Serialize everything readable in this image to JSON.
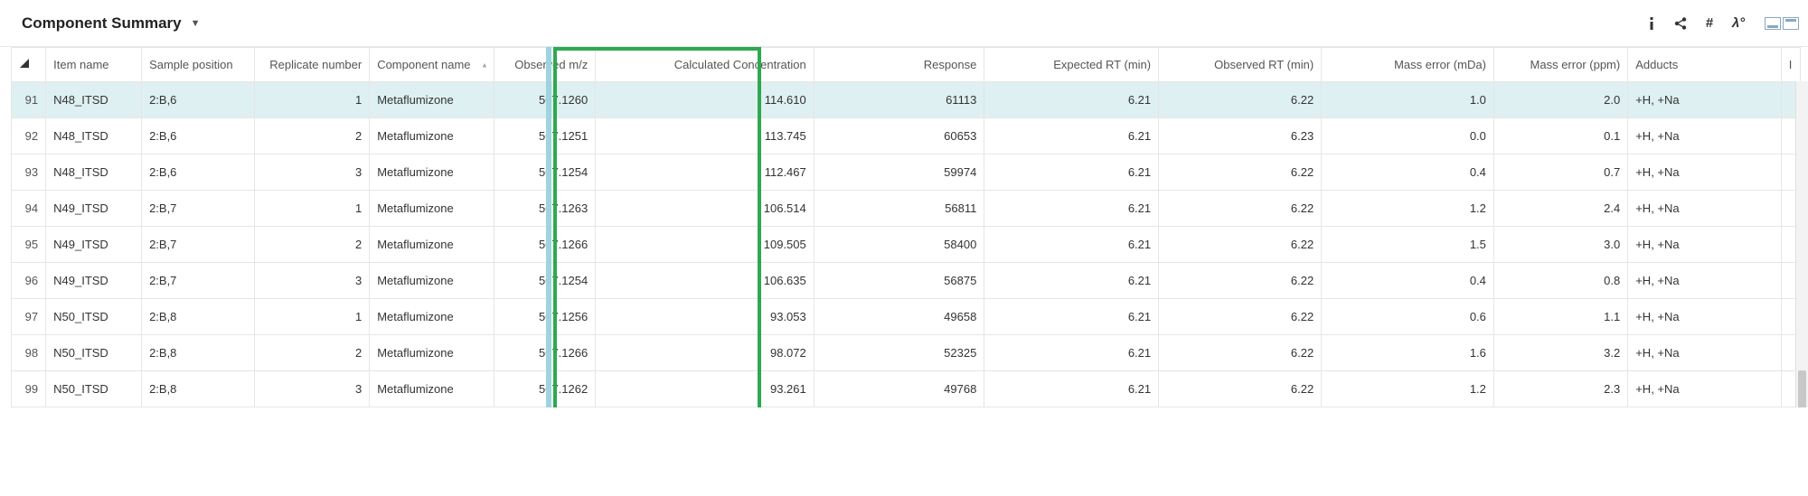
{
  "panel": {
    "title": "Component Summary"
  },
  "toolbar": {
    "info_icon": "info",
    "share_icon": "share",
    "hash_icon": "#",
    "lambda_icon": "λ°",
    "min_icon": "min",
    "max_icon": "max"
  },
  "table": {
    "columns": [
      {
        "key": "rownum",
        "label": "",
        "width": "rownum-col-th",
        "align": "left"
      },
      {
        "key": "item_name",
        "label": "Item name",
        "width": "c-itemname",
        "align": "left"
      },
      {
        "key": "sample_position",
        "label": "Sample position",
        "width": "c-samplepos",
        "align": "left"
      },
      {
        "key": "replicate_number",
        "label": "Replicate number",
        "width": "c-repnum",
        "align": "right"
      },
      {
        "key": "component_name",
        "label": "Component name",
        "width": "c-compname",
        "align": "left",
        "sort": "asc"
      },
      {
        "key": "observed_mz",
        "label": "Observed m/z",
        "width": "c-obsmz",
        "align": "right"
      },
      {
        "key": "calc_conc",
        "label": "Calculated Concentration",
        "width": "c-calcconc",
        "align": "right",
        "highlight": true
      },
      {
        "key": "response",
        "label": "Response",
        "width": "c-response",
        "align": "right"
      },
      {
        "key": "expected_rt",
        "label": "Expected RT (min)",
        "width": "c-exprt",
        "align": "right"
      },
      {
        "key": "observed_rt",
        "label": "Observed RT (min)",
        "width": "c-obsrt",
        "align": "right"
      },
      {
        "key": "mass_error_mda",
        "label": "Mass error (mDa)",
        "width": "c-mda",
        "align": "right"
      },
      {
        "key": "mass_error_ppm",
        "label": "Mass error (ppm)",
        "width": "c-ppm",
        "align": "right"
      },
      {
        "key": "adducts",
        "label": "Adducts",
        "width": "c-adducts",
        "align": "left"
      },
      {
        "key": "extra",
        "label": "I",
        "width": "c-extra",
        "align": "left"
      }
    ],
    "rows": [
      {
        "rownum": 91,
        "item_name": "N48_ITSD",
        "sample_position": "2:B,6",
        "replicate_number": 1,
        "component_name": "Metaflumizone",
        "observed_mz": "507.1260",
        "calc_conc": "114.610",
        "response": "61113",
        "expected_rt": "6.21",
        "observed_rt": "6.22",
        "mass_error_mda": "1.0",
        "mass_error_ppm": "2.0",
        "adducts": "+H, +Na",
        "selected": true
      },
      {
        "rownum": 92,
        "item_name": "N48_ITSD",
        "sample_position": "2:B,6",
        "replicate_number": 2,
        "component_name": "Metaflumizone",
        "observed_mz": "507.1251",
        "calc_conc": "113.745",
        "response": "60653",
        "expected_rt": "6.21",
        "observed_rt": "6.23",
        "mass_error_mda": "0.0",
        "mass_error_ppm": "0.1",
        "adducts": "+H, +Na"
      },
      {
        "rownum": 93,
        "item_name": "N48_ITSD",
        "sample_position": "2:B,6",
        "replicate_number": 3,
        "component_name": "Metaflumizone",
        "observed_mz": "507.1254",
        "calc_conc": "112.467",
        "response": "59974",
        "expected_rt": "6.21",
        "observed_rt": "6.22",
        "mass_error_mda": "0.4",
        "mass_error_ppm": "0.7",
        "adducts": "+H, +Na"
      },
      {
        "rownum": 94,
        "item_name": "N49_ITSD",
        "sample_position": "2:B,7",
        "replicate_number": 1,
        "component_name": "Metaflumizone",
        "observed_mz": "507.1263",
        "calc_conc": "106.514",
        "response": "56811",
        "expected_rt": "6.21",
        "observed_rt": "6.22",
        "mass_error_mda": "1.2",
        "mass_error_ppm": "2.4",
        "adducts": "+H, +Na"
      },
      {
        "rownum": 95,
        "item_name": "N49_ITSD",
        "sample_position": "2:B,7",
        "replicate_number": 2,
        "component_name": "Metaflumizone",
        "observed_mz": "507.1266",
        "calc_conc": "109.505",
        "response": "58400",
        "expected_rt": "6.21",
        "observed_rt": "6.22",
        "mass_error_mda": "1.5",
        "mass_error_ppm": "3.0",
        "adducts": "+H, +Na"
      },
      {
        "rownum": 96,
        "item_name": "N49_ITSD",
        "sample_position": "2:B,7",
        "replicate_number": 3,
        "component_name": "Metaflumizone",
        "observed_mz": "507.1254",
        "calc_conc": "106.635",
        "response": "56875",
        "expected_rt": "6.21",
        "observed_rt": "6.22",
        "mass_error_mda": "0.4",
        "mass_error_ppm": "0.8",
        "adducts": "+H, +Na"
      },
      {
        "rownum": 97,
        "item_name": "N50_ITSD",
        "sample_position": "2:B,8",
        "replicate_number": 1,
        "component_name": "Metaflumizone",
        "observed_mz": "507.1256",
        "calc_conc": "93.053",
        "response": "49658",
        "expected_rt": "6.21",
        "observed_rt": "6.22",
        "mass_error_mda": "0.6",
        "mass_error_ppm": "1.1",
        "adducts": "+H, +Na"
      },
      {
        "rownum": 98,
        "item_name": "N50_ITSD",
        "sample_position": "2:B,8",
        "replicate_number": 2,
        "component_name": "Metaflumizone",
        "observed_mz": "507.1266",
        "calc_conc": "98.072",
        "response": "52325",
        "expected_rt": "6.21",
        "observed_rt": "6.22",
        "mass_error_mda": "1.6",
        "mass_error_ppm": "3.2",
        "adducts": "+H, +Na"
      },
      {
        "rownum": 99,
        "item_name": "N50_ITSD",
        "sample_position": "2:B,8",
        "replicate_number": 3,
        "component_name": "Metaflumizone",
        "observed_mz": "507.1262",
        "calc_conc": "93.261",
        "response": "49768",
        "expected_rt": "6.21",
        "observed_rt": "6.22",
        "mass_error_mda": "1.2",
        "mass_error_ppm": "2.3",
        "adducts": "+H, +Na"
      }
    ]
  },
  "highlight": {
    "green_box_color": "#2fa84f",
    "cyan_band_color": "#9ed3df",
    "selected_row_bg": "#def0f1"
  }
}
